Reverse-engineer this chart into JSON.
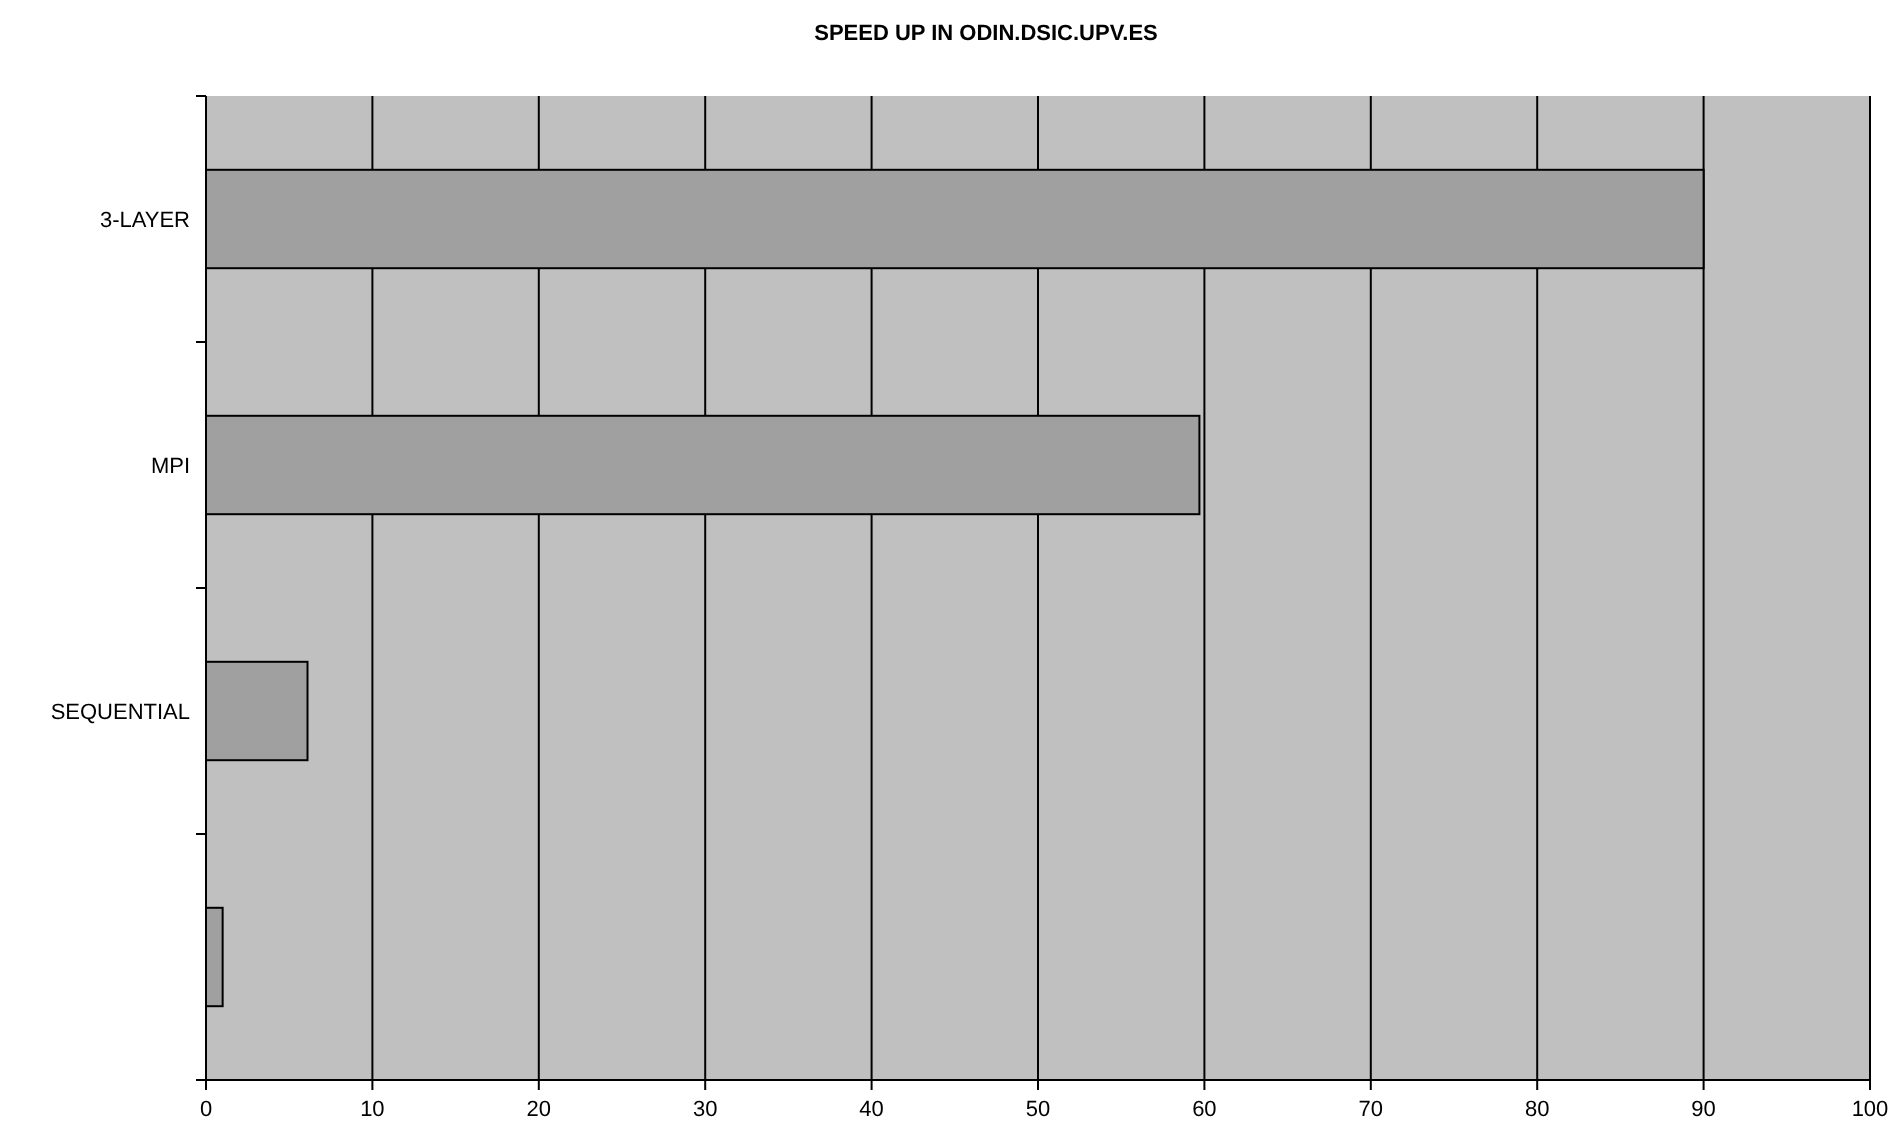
{
  "chart_data": {
    "type": "bar",
    "title": "SPEED UP IN ODIN.DSIC.UPV.ES",
    "orientation": "horizontal",
    "categories": [
      "3-LAYER",
      "MPI",
      "SEQUENTIAL",
      null
    ],
    "values": [
      90,
      59.7,
      6.1,
      1
    ],
    "color": "#a0a0a0",
    "xlim": [
      0,
      100
    ],
    "xticks": [
      0,
      10,
      20,
      30,
      40,
      50,
      60,
      70,
      80,
      90,
      100
    ],
    "grid": "x"
  }
}
